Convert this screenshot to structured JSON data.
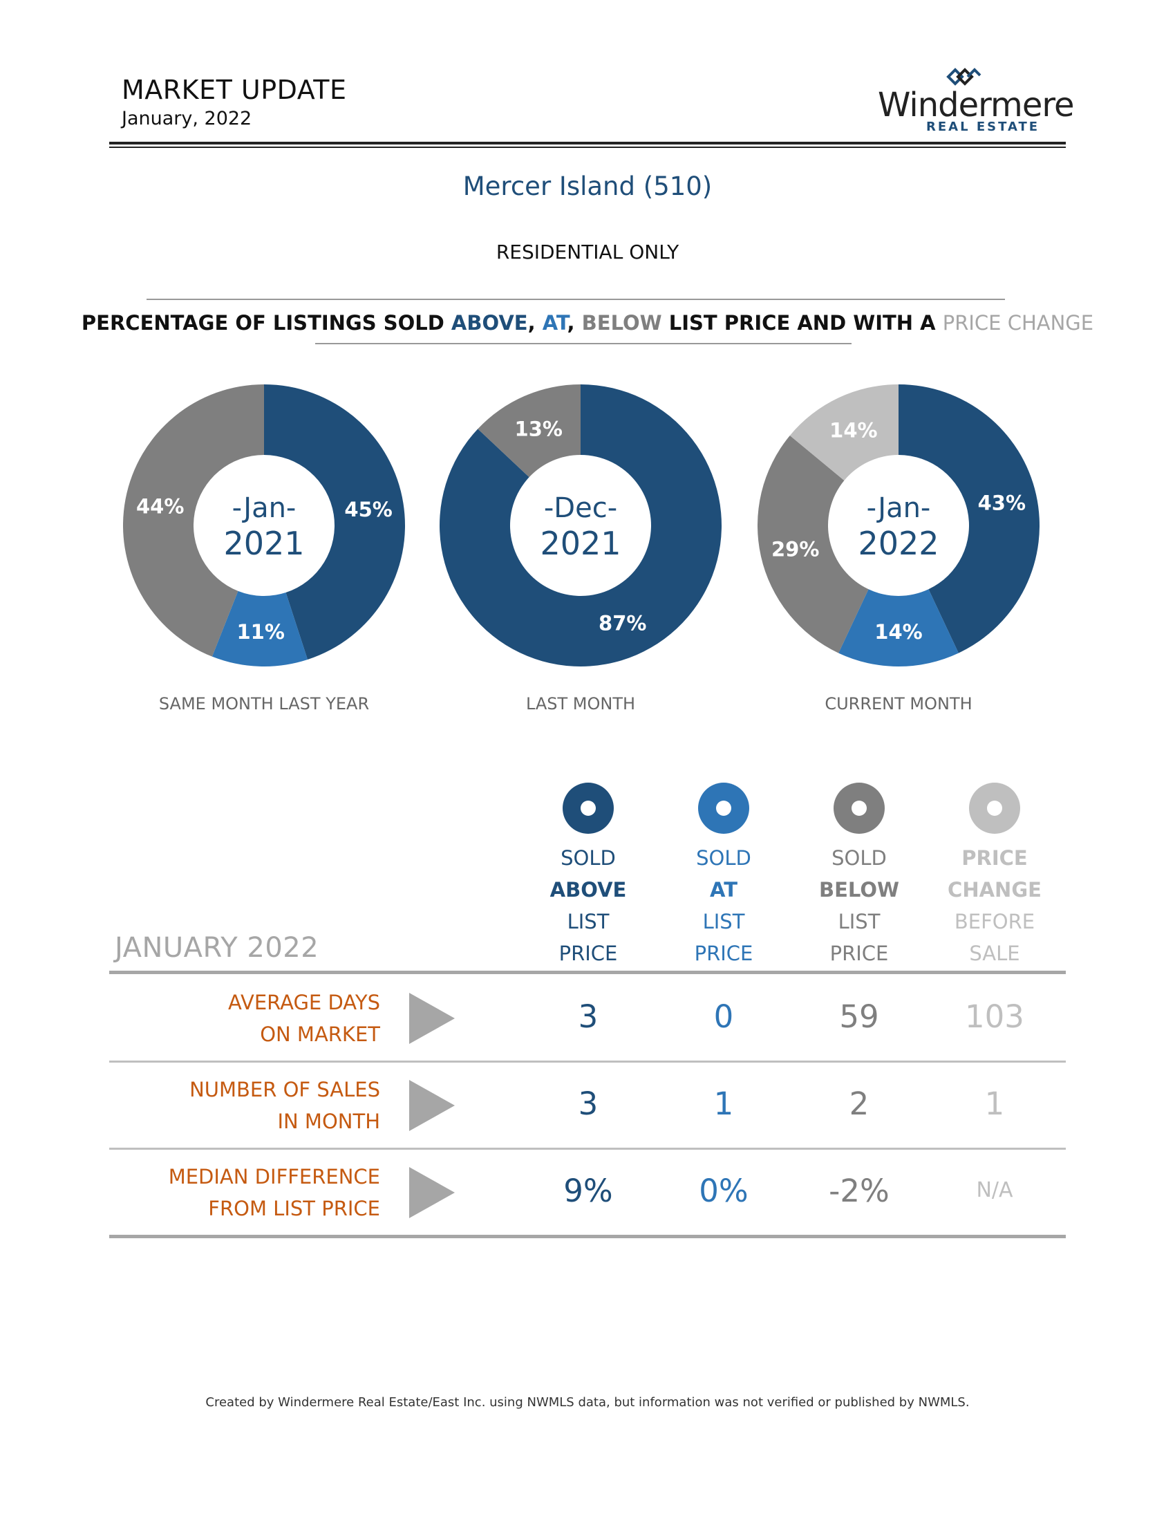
{
  "header": {
    "title": "MARKET UPDATE",
    "subtitle": "January, 2022",
    "logo_text": "Windermere",
    "logo_sub": "REAL ESTATE"
  },
  "location": "Mercer Island (510)",
  "property_type": "RESIDENTIAL ONLY",
  "section_heading": {
    "part1": "PERCENTAGE OF LISTINGS SOLD ",
    "above": "ABOVE",
    "comma1": ", ",
    "at": "AT",
    "comma2": ", ",
    "below": "BELOW",
    "part2": " LIST PRICE AND WITH A ",
    "price_change": "PRICE CHANGE"
  },
  "colors": {
    "above": "#1f4e79",
    "at": "#2e75b6",
    "below": "#7f7f7f",
    "price_change": "#bfbfbf",
    "row_label": "#c55a11"
  },
  "chart_data": [
    {
      "type": "pie",
      "center_line1": "-Jan-",
      "center_line2": "2021",
      "caption": "SAME MONTH LAST YEAR",
      "series": [
        {
          "name": "SOLD ABOVE LIST PRICE",
          "value": 45,
          "label": "45%"
        },
        {
          "name": "SOLD AT LIST PRICE",
          "value": 11,
          "label": "11%"
        },
        {
          "name": "SOLD BELOW LIST PRICE",
          "value": 44,
          "label": "44%"
        },
        {
          "name": "PRICE CHANGE BEFORE SALE",
          "value": 0,
          "label": ""
        }
      ]
    },
    {
      "type": "pie",
      "center_line1": "-Dec-",
      "center_line2": "2021",
      "caption": "LAST MONTH",
      "series": [
        {
          "name": "SOLD ABOVE LIST PRICE",
          "value": 87,
          "label": "87%"
        },
        {
          "name": "SOLD AT LIST PRICE",
          "value": 0,
          "label": ""
        },
        {
          "name": "SOLD BELOW LIST PRICE",
          "value": 13,
          "label": "13%"
        },
        {
          "name": "PRICE CHANGE BEFORE SALE",
          "value": 0,
          "label": ""
        }
      ]
    },
    {
      "type": "pie",
      "center_line1": "-Jan-",
      "center_line2": "2022",
      "caption": "CURRENT MONTH",
      "series": [
        {
          "name": "SOLD ABOVE LIST PRICE",
          "value": 43,
          "label": "43%"
        },
        {
          "name": "SOLD AT LIST PRICE",
          "value": 14,
          "label": "14%"
        },
        {
          "name": "SOLD BELOW LIST PRICE",
          "value": 29,
          "label": "29%"
        },
        {
          "name": "PRICE CHANGE BEFORE SALE",
          "value": 14,
          "label": "14%"
        }
      ]
    }
  ],
  "table": {
    "period_label": "JANUARY 2022",
    "columns": [
      {
        "line1": "SOLD",
        "line2": "ABOVE",
        "line3": "LIST",
        "line4": "PRICE",
        "color": "#1f4e79"
      },
      {
        "line1": "SOLD",
        "line2": "AT",
        "line3": "LIST",
        "line4": "PRICE",
        "color": "#2e75b6"
      },
      {
        "line1": "SOLD",
        "line2": "BELOW",
        "line3": "LIST",
        "line4": "PRICE",
        "color": "#7f7f7f"
      },
      {
        "line1": "PRICE",
        "line2": "CHANGE",
        "line3": "BEFORE",
        "line4": "SALE",
        "color": "#bfbfbf"
      }
    ],
    "rows": [
      {
        "label1": "AVERAGE DAYS",
        "label2": "ON MARKET",
        "values": [
          "3",
          "0",
          "59",
          "103"
        ]
      },
      {
        "label1": "NUMBER OF SALES",
        "label2": "IN MONTH",
        "values": [
          "3",
          "1",
          "2",
          "1"
        ]
      },
      {
        "label1": "MEDIAN DIFFERENCE",
        "label2": "FROM LIST PRICE",
        "values": [
          "9%",
          "0%",
          "-2%",
          "N/A"
        ]
      }
    ]
  },
  "footer": "Created by Windermere Real Estate/East Inc. using NWMLS data, but information was not verified or published by NWMLS."
}
